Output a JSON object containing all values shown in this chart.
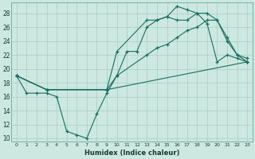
{
  "xlabel": "Humidex (Indice chaleur)",
  "bg_color": "#cce8e0",
  "grid_color": "#aaccc4",
  "line_color": "#1a6e60",
  "xlim": [
    -0.5,
    23.5
  ],
  "ylim": [
    9.5,
    29.5
  ],
  "xticks": [
    0,
    1,
    2,
    3,
    4,
    5,
    6,
    7,
    8,
    9,
    10,
    11,
    12,
    13,
    14,
    15,
    16,
    17,
    18,
    19,
    20,
    21,
    22,
    23
  ],
  "yticks": [
    10,
    12,
    14,
    16,
    18,
    20,
    22,
    24,
    26,
    28
  ],
  "line1_zigzag": {
    "x": [
      0,
      1,
      2,
      3,
      4,
      5,
      6,
      7,
      8,
      9,
      10,
      11,
      12,
      13,
      14,
      15,
      16,
      17,
      18,
      19,
      20,
      21,
      22,
      23
    ],
    "y": [
      19,
      16.5,
      16.5,
      16.5,
      16,
      11,
      10.5,
      10,
      13.5,
      16.5,
      19,
      22.5,
      22.5,
      26,
      27,
      27.5,
      27,
      27,
      28,
      26.5,
      21,
      22,
      21.5,
      21
    ]
  },
  "line2_upper": {
    "x": [
      0,
      3,
      9,
      10,
      13,
      14,
      15,
      16,
      17,
      18,
      19,
      20,
      21,
      22,
      23
    ],
    "y": [
      19,
      17,
      17,
      22.5,
      27,
      27,
      27.5,
      29,
      28.5,
      28,
      28,
      27,
      24.5,
      22,
      21.5
    ]
  },
  "line3_mid": {
    "x": [
      0,
      3,
      9,
      10,
      13,
      14,
      15,
      16,
      17,
      18,
      19,
      20,
      21,
      22,
      23
    ],
    "y": [
      19,
      17,
      17,
      19,
      22,
      23,
      23.5,
      24.5,
      25.5,
      26,
      27,
      27,
      24,
      22,
      21
    ]
  },
  "line4_low": {
    "x": [
      0,
      3,
      9,
      23
    ],
    "y": [
      19,
      17,
      17,
      21
    ]
  }
}
